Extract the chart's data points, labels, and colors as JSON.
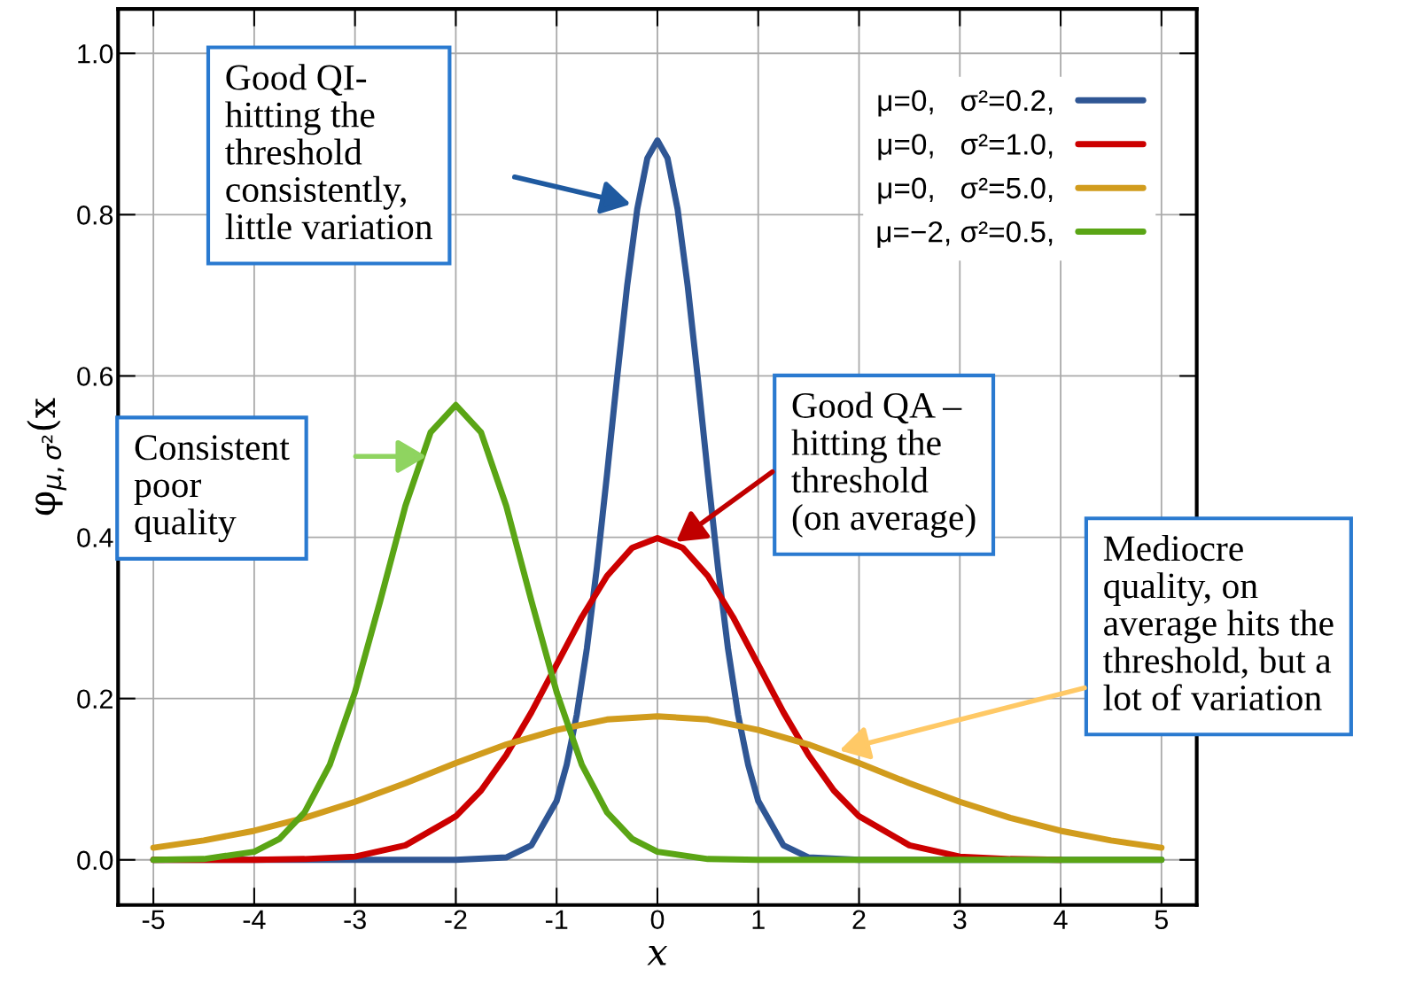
{
  "chart_data": {
    "type": "line",
    "xlabel": "x",
    "ylabel": "φ$_{μ,σ²}$(x",
    "xlim": [
      -5.35,
      5.35
    ],
    "ylim": [
      -0.056,
      1.055
    ],
    "xticks": [
      -5,
      -4,
      -3,
      -2,
      -1,
      0,
      1,
      2,
      3,
      4,
      5
    ],
    "yticks": [
      {
        "value": 0,
        "label": "0.0"
      },
      {
        "value": 0.2,
        "label": "0.2"
      },
      {
        "value": 0.4,
        "label": "0.4"
      },
      {
        "value": 0.6,
        "label": "0.6"
      },
      {
        "value": 0.8,
        "label": "0.8"
      },
      {
        "value": 1,
        "label": "1.0"
      }
    ],
    "grid": true,
    "legend": "top right",
    "line_style": "solid",
    "marker": "none",
    "series": [
      {
        "name": "μ=0,   σ²=0.2,",
        "color": "#2f5694",
        "x": [
          -5,
          -3,
          -2,
          -1.5,
          -1.25,
          -1,
          -0.9,
          -0.8,
          -0.7,
          -0.6,
          -0.5,
          -0.4,
          -0.3,
          -0.2,
          -0.1,
          0,
          0.1,
          0.2,
          0.3,
          0.4,
          0.5,
          0.6,
          0.7,
          0.8,
          0.9,
          1,
          1.25,
          1.5,
          2,
          3,
          5
        ],
        "values": [
          0,
          0,
          0,
          0.003,
          0.018,
          0.073,
          0.118,
          0.18,
          0.262,
          0.363,
          0.478,
          0.598,
          0.712,
          0.807,
          0.87,
          0.892,
          0.87,
          0.807,
          0.712,
          0.598,
          0.478,
          0.363,
          0.262,
          0.18,
          0.118,
          0.073,
          0.018,
          0.003,
          0,
          0,
          0
        ]
      },
      {
        "name": "μ=0,   σ²=1.0,",
        "color": "#cc0000",
        "x": [
          -5,
          -4.5,
          -4,
          -3.5,
          -3,
          -2.5,
          -2,
          -1.75,
          -1.5,
          -1.25,
          -1,
          -0.75,
          -0.5,
          -0.25,
          0,
          0.25,
          0.5,
          0.75,
          1,
          1.25,
          1.5,
          1.75,
          2,
          2.5,
          3,
          3.5,
          4
        ],
        "values": [
          0,
          0,
          0,
          0.001,
          0.004,
          0.018,
          0.054,
          0.086,
          0.13,
          0.183,
          0.242,
          0.301,
          0.352,
          0.387,
          0.399,
          0.387,
          0.352,
          0.301,
          0.242,
          0.183,
          0.13,
          0.086,
          0.054,
          0.018,
          0.004,
          0.001,
          0
        ]
      },
      {
        "name": "μ=0,   σ²=5.0,",
        "color": "#d19c1d",
        "x": [
          -5,
          -4.5,
          -4,
          -3.5,
          -3,
          -2.5,
          -2,
          -1.5,
          -1,
          -0.5,
          0,
          0.5,
          1,
          1.5,
          2,
          2.5,
          3,
          3.5,
          4,
          4.5,
          5
        ],
        "values": [
          0.015,
          0.024,
          0.036,
          0.052,
          0.072,
          0.095,
          0.12,
          0.143,
          0.161,
          0.174,
          0.178,
          0.174,
          0.161,
          0.143,
          0.12,
          0.095,
          0.072,
          0.052,
          0.036,
          0.024,
          0.015
        ]
      },
      {
        "name": "μ=−2, σ²=0.5,",
        "color": "#5aa515",
        "x": [
          -5,
          -4.5,
          -4,
          -3.75,
          -3.5,
          -3.25,
          -3,
          -2.75,
          -2.5,
          -2.25,
          -2,
          -1.75,
          -1.5,
          -1.25,
          -1,
          -0.75,
          -0.5,
          -0.25,
          0,
          0.5,
          1,
          5
        ],
        "values": [
          0,
          0.001,
          0.01,
          0.026,
          0.059,
          0.118,
          0.208,
          0.321,
          0.439,
          0.53,
          0.564,
          0.53,
          0.439,
          0.321,
          0.208,
          0.118,
          0.059,
          0.026,
          0.01,
          0.001,
          0,
          0
        ]
      }
    ],
    "annotations": [
      "Good QI-\nhitting the\nthreshold\nconsistently,\nlittle variation",
      "Consistent\npoor\nquality",
      "Good QA –\nhitting the\nthreshold\n(on average)",
      "Mediocre\nquality, on\naverage hits the\nthreshold, but a\nlot of variation"
    ]
  }
}
